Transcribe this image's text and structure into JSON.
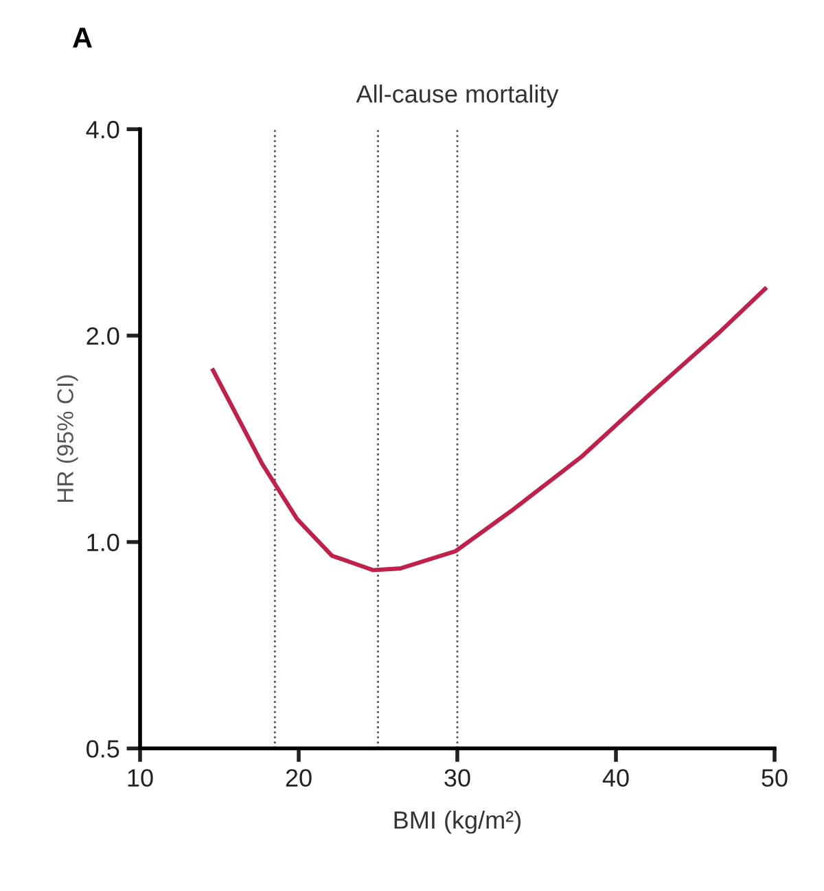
{
  "chart_data": {
    "type": "line",
    "title": "All-cause mortality",
    "xlabel": "BMI (kg/m²)",
    "ylabel": "HR (95% CI)",
    "annotations": [
      "A"
    ],
    "log": "y",
    "x": [
      14.6,
      17.7,
      19.9,
      22.1,
      24.7,
      26.4,
      29.9,
      33.4,
      37.8,
      42.1,
      46.5,
      49.4
    ],
    "series": [
      {
        "color": "#c0204a",
        "values": [
          1.78,
          1.3,
          1.08,
          0.955,
          0.91,
          0.915,
          0.97,
          1.11,
          1.33,
          1.64,
          2.02,
          2.34
        ]
      }
    ],
    "xlim": [
      10,
      50
    ],
    "xticks": [
      10,
      20,
      30,
      40,
      50
    ],
    "ylim": [
      0.5,
      4.0
    ],
    "yticks": [
      {
        "value": 0.5,
        "label": "0.5"
      },
      {
        "value": 1.0,
        "label": "1.0"
      },
      {
        "value": 2.0,
        "label": "2.0"
      },
      {
        "value": 4.0,
        "label": "4.0"
      }
    ],
    "ref_lines": [
      {
        "axis": "x",
        "value": 18.5,
        "line_style": "dotted"
      },
      {
        "axis": "x",
        "value": 25,
        "line_style": "dotted"
      },
      {
        "axis": "x",
        "value": 30,
        "line_style": "dotted"
      }
    ],
    "grid": false,
    "legend": false,
    "marker": "none",
    "line_style": "solid"
  }
}
